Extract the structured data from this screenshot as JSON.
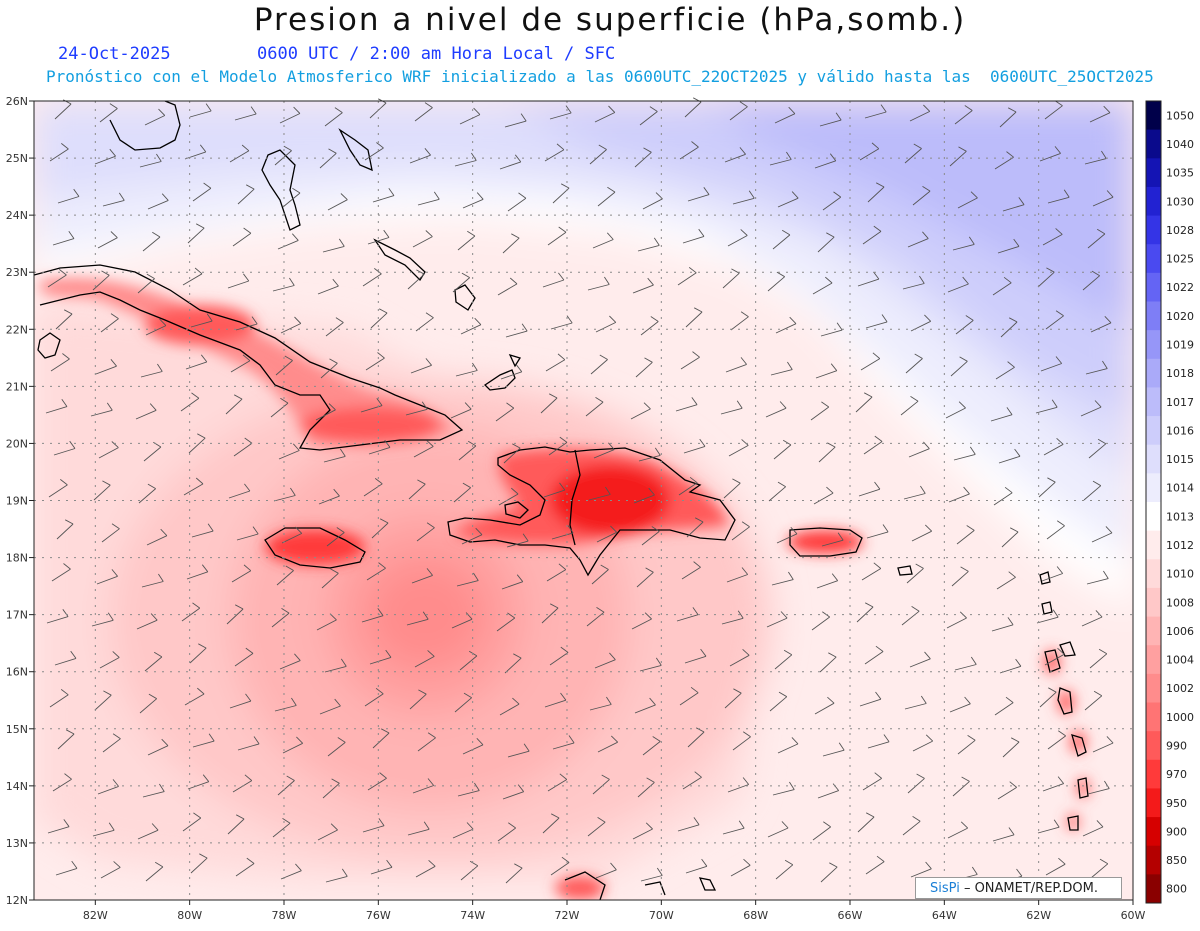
{
  "header": {
    "title": "Presion a nivel de superficie (hPa,somb.)",
    "date": "24-Oct-2025",
    "time_info": "0600 UTC / 2:00 am Hora Local / SFC",
    "model_info": "Pronóstico con el Modelo Atmosferico WRF inicializado a las 0600UTC_22OCT2025 y válido hasta las  0600UTC_25OCT2025"
  },
  "map": {
    "lon_labels": [
      "82W",
      "80W",
      "78W",
      "76W",
      "74W",
      "72W",
      "70W",
      "68W",
      "66W",
      "64W",
      "62W",
      "60W"
    ],
    "lat_labels": [
      "26N",
      "25N",
      "24N",
      "23N",
      "22N",
      "21N",
      "20N",
      "19N",
      "18N",
      "17N",
      "16N",
      "15N",
      "14N",
      "13N",
      "12N"
    ],
    "lon_range": [
      -83.3,
      -60
    ],
    "lat_range": [
      12,
      26
    ]
  },
  "colorbar": {
    "levels": [
      "1050",
      "1040",
      "1035",
      "1030",
      "1028",
      "1025",
      "1022",
      "1020",
      "1019",
      "1018",
      "1017",
      "1016",
      "1015",
      "1014",
      "1013",
      "1012",
      "1010",
      "1008",
      "1006",
      "1004",
      "1002",
      "1000",
      "990",
      "970",
      "950",
      "900",
      "850",
      "800"
    ],
    "colors": [
      "#00004a",
      "#0a0a8c",
      "#1414b4",
      "#2222d2",
      "#3434e6",
      "#4a4af0",
      "#6464f4",
      "#7e7ef6",
      "#9696f8",
      "#aaaaf9",
      "#bcbcfa",
      "#cdcdfb",
      "#dedefc",
      "#ededfd",
      "#ffffff",
      "#ffecec",
      "#ffdada",
      "#ffc8c8",
      "#ffb4b4",
      "#ffa0a0",
      "#ff8c8c",
      "#ff7474",
      "#ff5a5a",
      "#ff3a3a",
      "#f41a1a",
      "#d60000",
      "#b40000",
      "#8a0000"
    ]
  },
  "credit": {
    "logo": "SisPi",
    "text": " – ONAMET/REP.DOM."
  }
}
